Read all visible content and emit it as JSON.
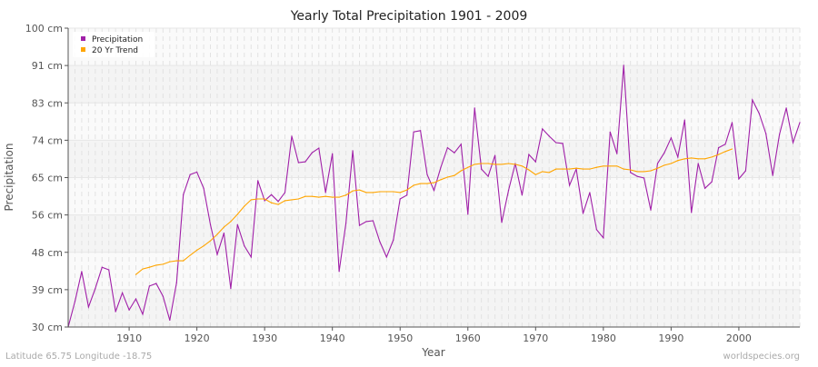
{
  "chart_data": {
    "type": "line",
    "title": "Yearly Total Precipitation 1901 - 2009",
    "xlabel": "Year",
    "ylabel": "Precipitation",
    "xlim": [
      1901,
      2009
    ],
    "ylim": [
      30,
      100
    ],
    "x_ticks": [
      1910,
      1920,
      1930,
      1940,
      1950,
      1960,
      1970,
      1980,
      1990,
      2000
    ],
    "y_ticks": [
      {
        "value": 30,
        "label": "30 cm"
      },
      {
        "value": 38.75,
        "label": "39 cm"
      },
      {
        "value": 47.5,
        "label": "48 cm"
      },
      {
        "value": 56.25,
        "label": "56 cm"
      },
      {
        "value": 65,
        "label": "65 cm"
      },
      {
        "value": 73.75,
        "label": "74 cm"
      },
      {
        "value": 82.5,
        "label": "83 cm"
      },
      {
        "value": 91.25,
        "label": "91 cm"
      },
      {
        "value": 100,
        "label": "100 cm"
      }
    ],
    "grid": true,
    "legend_position": "top-left",
    "series": [
      {
        "name": "Precipitation",
        "color": "#a020a8",
        "x_start": 1901,
        "values": [
          30.0,
          36,
          43,
          34.7,
          39,
          44,
          43.4,
          33.6,
          38,
          34,
          36.6,
          33,
          39.6,
          40.2,
          37.2,
          31.6,
          40.4,
          61,
          65.7,
          66.3,
          62.5,
          54,
          47,
          52,
          39,
          54,
          49,
          46.4,
          64.3,
          59.6,
          61,
          59.4,
          61.5,
          74.7,
          68.5,
          68.7,
          70.8,
          71.9,
          61.5,
          70.6,
          43,
          54.3,
          71.3,
          53.8,
          54.7,
          54.9,
          50,
          46.4,
          50.4,
          60,
          60.9,
          75.7,
          76,
          65.7,
          62,
          67.4,
          72,
          70.8,
          72.8,
          56.4,
          81.3,
          67,
          65.3,
          70.2,
          54.5,
          62,
          68.3,
          60.9,
          70.4,
          68.7,
          76.4,
          74.7,
          73.2,
          73,
          63.2,
          67,
          56.6,
          61.5,
          52.8,
          50.9,
          75.7,
          70.6,
          91.3,
          66.2,
          65.3,
          64.9,
          57.4,
          68.3,
          70.8,
          74.3,
          69.8,
          78.5,
          56.8,
          68.3,
          62.5,
          64,
          72,
          72.8,
          77.9,
          64.7,
          66.6,
          83.2,
          80,
          75.3,
          65.5,
          75.1,
          81.3,
          73.2,
          77.9
        ]
      },
      {
        "name": "20 Yr Trend",
        "color": "#ffa500",
        "x_start": 1911,
        "values": [
          42.3,
          43.6,
          44,
          44.5,
          44.7,
          45.3,
          45.5,
          45.5,
          46.8,
          48,
          49,
          50.2,
          51.7,
          53.4,
          54.7,
          56.4,
          58.3,
          59.8,
          60,
          60,
          59.1,
          58.7,
          59.6,
          59.8,
          60,
          60.6,
          60.6,
          60.4,
          60.6,
          60.4,
          60.4,
          60.9,
          61.9,
          62.1,
          61.5,
          61.5,
          61.7,
          61.7,
          61.7,
          61.5,
          62.1,
          63.2,
          63.6,
          63.6,
          63.8,
          64.5,
          65.1,
          65.5,
          66.6,
          67.4,
          68.1,
          68.3,
          68.3,
          68.1,
          68.1,
          68.3,
          68.1,
          67.7,
          66.8,
          65.7,
          66.4,
          66.2,
          67,
          67,
          67,
          67.2,
          67,
          67,
          67.4,
          67.7,
          67.7,
          67.7,
          67,
          66.8,
          66.4,
          66.4,
          66.6,
          67.2,
          67.9,
          68.3,
          69,
          69.4,
          69.6,
          69.4,
          69.4,
          69.8,
          70.4,
          71.1,
          71.7
        ]
      }
    ]
  },
  "footer": {
    "location": "Latitude 65.75 Longitude -18.75",
    "source": "worldspecies.org"
  }
}
